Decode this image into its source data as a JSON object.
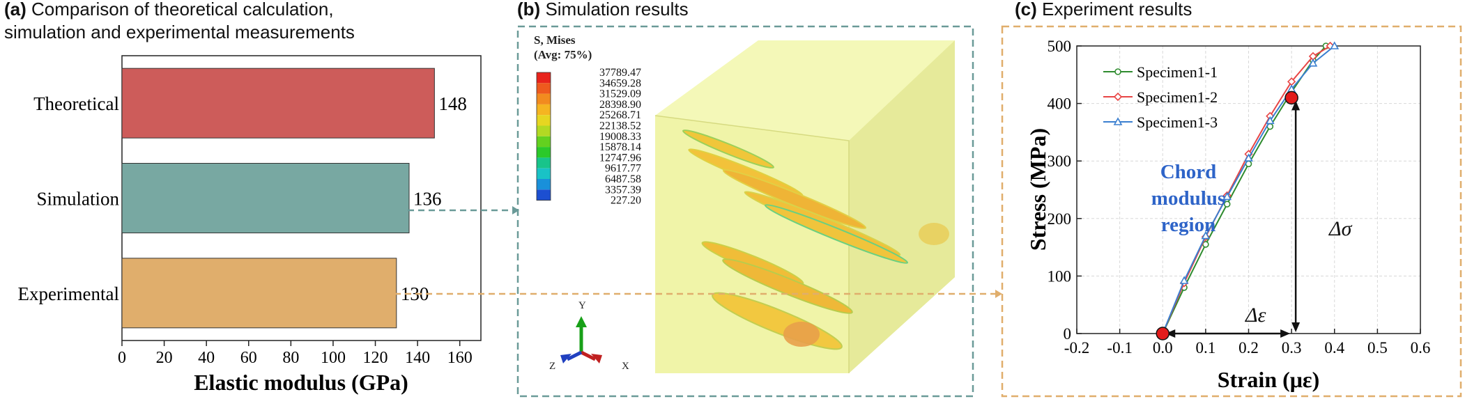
{
  "panel_a": {
    "tag": "(a)",
    "title_line1": "Comparison of theoretical calculation,",
    "title_line2": "simulation and experimental measurements"
  },
  "panel_b": {
    "tag": "(b)",
    "title": "Simulation results",
    "legend_title1": "S, Mises",
    "legend_title2": "(Avg: 75%)",
    "legend_values": [
      "37789.47",
      "34659.28",
      "31529.09",
      "28398.90",
      "25268.71",
      "22138.52",
      "19008.33",
      "15878.14",
      "12747.96",
      "9617.77",
      "6487.58",
      "3357.39",
      "227.20"
    ],
    "legend_colors": [
      "#e8231c",
      "#ee5a1e",
      "#f28b1f",
      "#f5b521",
      "#e6d621",
      "#b2d923",
      "#63d11f",
      "#2bc92a",
      "#18c48a",
      "#19c2c6",
      "#1990da",
      "#1c4fd1"
    ],
    "axes": {
      "x": "X",
      "y": "Y",
      "z": "Z"
    }
  },
  "panel_c": {
    "tag": "(c)",
    "title": "Experiment results",
    "chord_line1": "Chord",
    "chord_line2": "modulus",
    "chord_line3": "region",
    "delta_sigma": "Δσ",
    "delta_epsilon": "Δε"
  },
  "chart_data": [
    {
      "type": "bar",
      "orientation": "horizontal",
      "categories": [
        "Theoretical",
        "Simulation",
        "Experimental"
      ],
      "values": [
        148,
        136,
        130
      ],
      "colors": [
        "#cd5c5a",
        "#78a8a2",
        "#e0ae6c"
      ],
      "xlabel": "Elastic modulus (GPa)",
      "ylabel": "",
      "xlim": [
        0,
        170
      ],
      "xticks": [
        0,
        20,
        40,
        60,
        80,
        100,
        120,
        140,
        160
      ]
    },
    {
      "type": "line",
      "xlabel": "Strain (με)",
      "ylabel": "Stress (MPa)",
      "xlim": [
        -0.2,
        0.6
      ],
      "ylim": [
        0,
        500
      ],
      "xticks": [
        "-0.2",
        "-0.1",
        "0.0",
        "0.1",
        "0.2",
        "0.3",
        "0.4",
        "0.5",
        "0.6"
      ],
      "yticks": [
        "0",
        "100",
        "200",
        "300",
        "400",
        "500"
      ],
      "grid": true,
      "legend_position": "top-left",
      "series": [
        {
          "name": "Specimen1-1",
          "color": "#2e8b2e",
          "marker": "circle",
          "x": [
            0.0,
            0.05,
            0.1,
            0.15,
            0.2,
            0.25,
            0.3,
            0.35,
            0.38
          ],
          "y": [
            0,
            80,
            155,
            225,
            295,
            360,
            420,
            475,
            500
          ]
        },
        {
          "name": "Specimen1-2",
          "color": "#e84545",
          "marker": "diamond",
          "x": [
            0.0,
            0.05,
            0.1,
            0.15,
            0.2,
            0.25,
            0.3,
            0.35,
            0.39
          ],
          "y": [
            0,
            88,
            168,
            240,
            312,
            378,
            438,
            482,
            500
          ]
        },
        {
          "name": "Specimen1-3",
          "color": "#3a7fd0",
          "marker": "triangle",
          "x": [
            0.0,
            0.05,
            0.1,
            0.15,
            0.2,
            0.25,
            0.3,
            0.35,
            0.4
          ],
          "y": [
            0,
            92,
            170,
            238,
            305,
            370,
            425,
            470,
            500
          ]
        }
      ],
      "key_points": [
        {
          "x": 0.0,
          "y": 0
        },
        {
          "x": 0.3,
          "y": 410
        }
      ]
    }
  ]
}
